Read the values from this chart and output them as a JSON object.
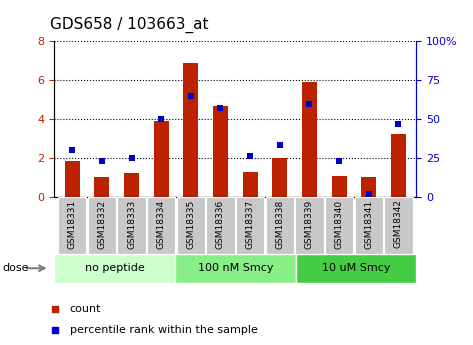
{
  "title": "GDS658 / 103663_at",
  "samples": [
    "GSM18331",
    "GSM18332",
    "GSM18333",
    "GSM18334",
    "GSM18335",
    "GSM18336",
    "GSM18337",
    "GSM18338",
    "GSM18339",
    "GSM18340",
    "GSM18341",
    "GSM18342"
  ],
  "counts": [
    1.85,
    1.0,
    1.2,
    3.9,
    6.9,
    4.65,
    1.25,
    2.0,
    5.9,
    1.05,
    1.0,
    3.25
  ],
  "percentiles": [
    30,
    23,
    25,
    50,
    65,
    57,
    26,
    33,
    60,
    23,
    2,
    47
  ],
  "bar_color": "#bb2200",
  "dot_color": "#0000cc",
  "ylim_left": [
    0,
    8
  ],
  "ylim_right": [
    0,
    100
  ],
  "yticks_left": [
    0,
    2,
    4,
    6,
    8
  ],
  "yticks_right": [
    0,
    25,
    50,
    75,
    100
  ],
  "yticklabels_right": [
    "0",
    "25",
    "50",
    "75",
    "100%"
  ],
  "groups": [
    {
      "label": "no peptide",
      "start": 0,
      "end": 4,
      "color": "#ccffcc"
    },
    {
      "label": "100 nM Smcy",
      "start": 4,
      "end": 8,
      "color": "#88ee88"
    },
    {
      "label": "10 uM Smcy",
      "start": 8,
      "end": 12,
      "color": "#44cc44"
    }
  ],
  "dose_label": "dose",
  "legend_count_label": "count",
  "legend_pct_label": "percentile rank within the sample",
  "grid_color": "#000000",
  "tick_bg_color": "#c8c8c8",
  "bar_width": 0.5,
  "title_fontsize": 11
}
